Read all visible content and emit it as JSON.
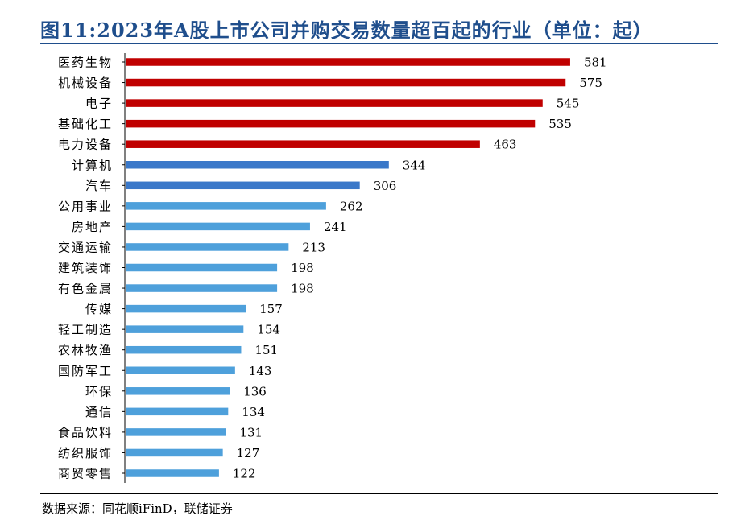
{
  "header": {
    "title": "图11:2023年A股上市公司并购交易数量超百起的行业（单位：起）"
  },
  "footer": {
    "source": "数据来源：同花顺iFinD，联储证券"
  },
  "colors": {
    "title": "#1f4e8c",
    "top5": "#c00000",
    "mid": "#3a78c9",
    "rest": "#4ea0db"
  },
  "chart_data": {
    "type": "bar",
    "orientation": "horizontal",
    "categories": [
      "医药生物",
      "机械设备",
      "电子",
      "基础化工",
      "电力设备",
      "计算机",
      "汽车",
      "公用事业",
      "房地产",
      "交通运输",
      "建筑装饰",
      "有色金属",
      "传媒",
      "轻工制造",
      "农林牧渔",
      "国防军工",
      "环保",
      "通信",
      "食品饮料",
      "纺织服饰",
      "商贸零售"
    ],
    "values": [
      581,
      575,
      545,
      535,
      463,
      344,
      306,
      262,
      241,
      213,
      198,
      198,
      157,
      154,
      151,
      143,
      136,
      134,
      131,
      127,
      122
    ],
    "bar_colors": [
      "#c00000",
      "#c00000",
      "#c00000",
      "#c00000",
      "#c00000",
      "#3a78c9",
      "#3a78c9",
      "#4ea0db",
      "#4ea0db",
      "#4ea0db",
      "#4ea0db",
      "#4ea0db",
      "#4ea0db",
      "#4ea0db",
      "#4ea0db",
      "#4ea0db",
      "#4ea0db",
      "#4ea0db",
      "#4ea0db",
      "#4ea0db",
      "#4ea0db"
    ],
    "xlim": [
      0,
      640
    ],
    "data_labels": true,
    "grid": false,
    "legend": "none"
  }
}
